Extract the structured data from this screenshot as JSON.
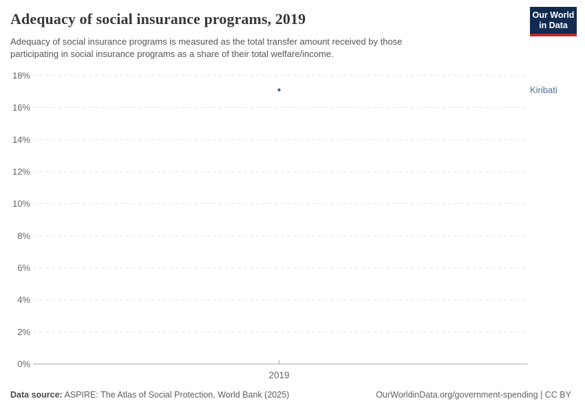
{
  "header": {
    "title": "Adequacy of social insurance programs, 2019",
    "subtitle_lines": [
      "Adequacy of social insurance programs is measured as the total transfer amount received by those",
      "participating in social insurance programs as a share of their total welfare/income."
    ],
    "logo": {
      "line1": "Our World",
      "line2": "in Data",
      "bg_color": "#102a50",
      "stripe_color": "#c0272d"
    }
  },
  "chart_data": {
    "type": "scatter",
    "title": "Adequacy of social insurance programs, 2019",
    "xlabel": "",
    "ylabel": "",
    "ylim": [
      0,
      18
    ],
    "yticks": [
      0,
      2,
      4,
      6,
      8,
      10,
      12,
      14,
      16,
      18
    ],
    "ytick_format": "{v}%",
    "xticks": [
      "2019"
    ],
    "grid": "horizontal-dashed",
    "legend_position": "right-of-plot",
    "series": [
      {
        "name": "Kiribati",
        "x": 2019,
        "y": 17.1
      }
    ],
    "theme": {
      "grid_color": "#e2e2e2",
      "axis_color": "#a8a8a8",
      "axis_text_color": "#666666",
      "point_color": "#3d6399",
      "label_color": "#4c6a9c"
    }
  },
  "footer": {
    "datasource_label": "Data source:",
    "datasource_value": "ASPIRE: The Atlas of Social Protection, World Bank (2025)",
    "attribution": "OurWorldinData.org/government-spending | CC BY"
  }
}
